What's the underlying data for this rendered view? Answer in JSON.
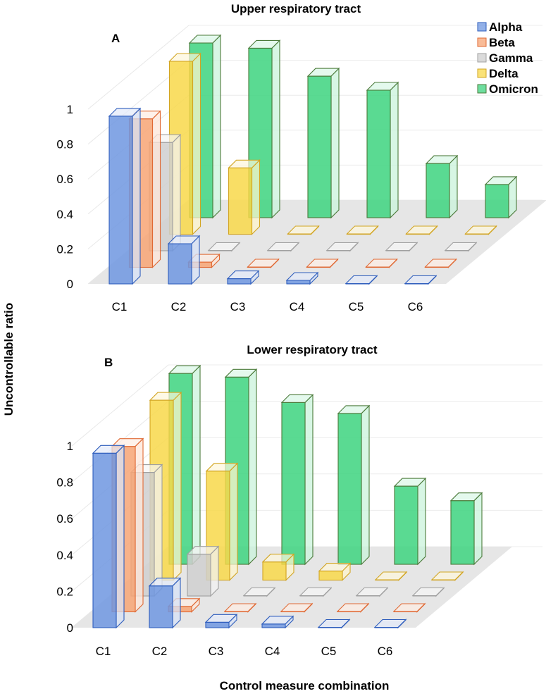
{
  "chart_data": [
    {
      "type": "bar",
      "panel": "A",
      "title": "Upper respiratory tract",
      "ylabel": "Uncontrollable ratio",
      "xlabel": "Control measure combination",
      "ylim": [
        0,
        1
      ],
      "yticks": [
        "0",
        "0.2",
        "0.4",
        "0.6",
        "0.8",
        "1"
      ],
      "categories": [
        "C1",
        "C2",
        "C3",
        "C4",
        "C5",
        "C6"
      ],
      "series": [
        {
          "name": "Alpha",
          "values": [
            0.96,
            0.23,
            0.03,
            0.02,
            0.0,
            0.0
          ]
        },
        {
          "name": "Beta",
          "values": [
            0.85,
            0.03,
            0.0,
            0.0,
            0.0,
            0.0
          ]
        },
        {
          "name": "Gamma",
          "values": [
            0.62,
            0.0,
            0.0,
            0.0,
            0.0,
            0.0
          ]
        },
        {
          "name": "Delta",
          "values": [
            0.99,
            0.38,
            0.0,
            0.0,
            0.0,
            0.0
          ]
        },
        {
          "name": "Omicron",
          "values": [
            1.0,
            0.97,
            0.81,
            0.73,
            0.31,
            0.19
          ]
        }
      ]
    },
    {
      "type": "bar",
      "panel": "B",
      "title": "Lower respiratory tract",
      "ylabel": "Uncontrollable ratio",
      "xlabel": "Control measure combination",
      "ylim": [
        0,
        1
      ],
      "yticks": [
        "0",
        "0.2",
        "0.4",
        "0.6",
        "0.8",
        "1"
      ],
      "categories": [
        "C1",
        "C2",
        "C3",
        "C4",
        "C5",
        "C6"
      ],
      "series": [
        {
          "name": "Alpha",
          "values": [
            0.96,
            0.23,
            0.03,
            0.02,
            0.0,
            0.0
          ]
        },
        {
          "name": "Beta",
          "values": [
            0.91,
            0.03,
            0.0,
            0.0,
            0.0,
            0.0
          ]
        },
        {
          "name": "Gamma",
          "values": [
            0.68,
            0.23,
            0.0,
            0.0,
            0.0,
            0.0
          ]
        },
        {
          "name": "Delta",
          "values": [
            0.99,
            0.6,
            0.1,
            0.05,
            0.0,
            0.0
          ]
        },
        {
          "name": "Omicron",
          "values": [
            1.05,
            1.03,
            0.89,
            0.83,
            0.43,
            0.35
          ]
        }
      ]
    }
  ],
  "legend": [
    {
      "name": "Alpha",
      "color": "#6f97e0",
      "edge": "#2f5ebd"
    },
    {
      "name": "Beta",
      "color": "#f7a474",
      "edge": "#e06a35"
    },
    {
      "name": "Gamma",
      "color": "#cfcfcf",
      "edge": "#a0a0a0"
    },
    {
      "name": "Delta",
      "color": "#f8d84a",
      "edge": "#d2a523"
    },
    {
      "name": "Omicron",
      "color": "#3dd37f",
      "edge": "#4b7a3a"
    }
  ],
  "labels": {
    "panel_a_letter": "A",
    "panel_b_letter": "B",
    "ylabel": "Uncontrollable ratio",
    "xlabel": "Control measure combination"
  }
}
